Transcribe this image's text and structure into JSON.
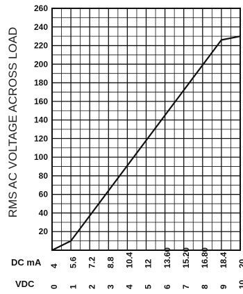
{
  "chart_data": {
    "type": "line",
    "ylabel": "RMS AC VOLTAGE  ACROSS LOAD",
    "ylim": [
      0,
      260
    ],
    "y_ticks": [
      "20",
      "40",
      "60",
      "80",
      "100",
      "120",
      "140",
      "160",
      "180",
      "200",
      "220",
      "240",
      "260"
    ],
    "x_axes": [
      {
        "name": "DC mA",
        "ticks": [
          "4",
          "5.6",
          "7.2",
          "8.8",
          "10.4",
          "12",
          "13.60",
          "15.20",
          "16.80",
          "18.4",
          "20"
        ]
      },
      {
        "name": "VDC",
        "ticks": [
          "0",
          "1",
          "2",
          "3",
          "4",
          "5",
          "6",
          "7",
          "8",
          "9",
          "10"
        ]
      }
    ],
    "grid": true,
    "series": [
      {
        "x_vdc": [
          0,
          1,
          9,
          10
        ],
        "y": [
          0,
          10,
          226,
          230
        ]
      }
    ],
    "colors": {
      "line": "#111111",
      "grid": "#111111"
    }
  }
}
